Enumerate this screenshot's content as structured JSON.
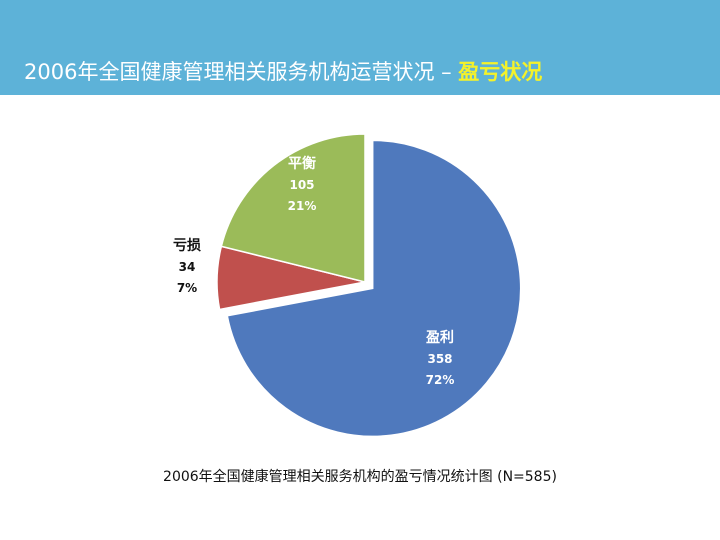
{
  "header": {
    "title_main": "2006年全国健康管理相关服务机构运营状况 – ",
    "title_highlight": "盈亏状况"
  },
  "colors": {
    "header_bg": "#5db2d8",
    "title_highlight": "#f4f22a",
    "profit": "#4f79bd",
    "loss": "#c0504d",
    "breakeven": "#9bbb59"
  },
  "chart_data": {
    "type": "pie",
    "total_label": "N=585",
    "slices": [
      {
        "label": "盈利",
        "count": 358,
        "percent": "72%",
        "color": "#4f79bd"
      },
      {
        "label": "亏损",
        "count": 34,
        "percent": "7%",
        "color": "#c0504d"
      },
      {
        "label": "平衡",
        "count": 105,
        "percent": "21%",
        "color": "#9bbb59"
      }
    ],
    "exploded": "盈利",
    "legend": "none"
  },
  "caption": "2006年全国健康管理相关服务机构的盈亏情况统计图 (N=585)"
}
